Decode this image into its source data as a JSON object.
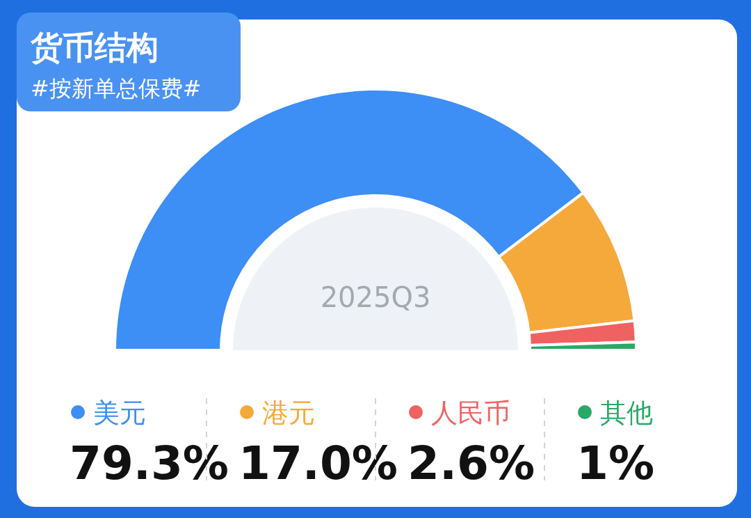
{
  "chart_data": {
    "type": "donut",
    "title": "货币结构",
    "subtitle": "#按新单总保费#",
    "annotations": [
      "2025Q3"
    ],
    "categories": [
      "美元",
      "港元",
      "人民币",
      "其他"
    ],
    "values": [
      79.3,
      17.0,
      2.6,
      1
    ],
    "colors": [
      "#3d8ef5",
      "#f5a93a",
      "#f06262",
      "#2aa868"
    ],
    "value_labels": [
      "79.3%",
      "17.0%",
      "2.6%",
      "1%"
    ],
    "legend": "bottom"
  }
}
